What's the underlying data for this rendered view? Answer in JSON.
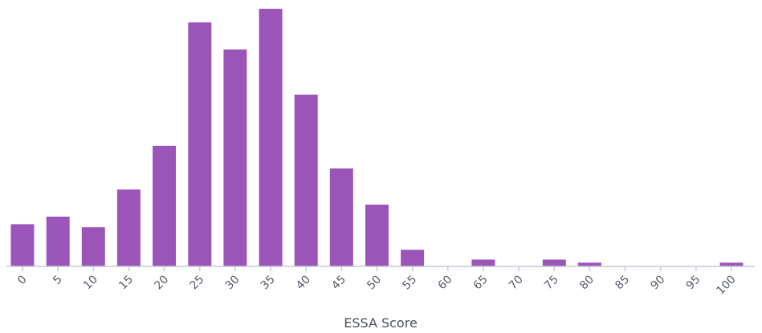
{
  "chart_data": {
    "type": "bar",
    "xlabel": "ESSA Score",
    "ylabel": "",
    "categories": [
      "0",
      "5",
      "10",
      "15",
      "20",
      "25",
      "30",
      "35",
      "40",
      "45",
      "50",
      "55",
      "60",
      "65",
      "70",
      "75",
      "80",
      "85",
      "90",
      "95",
      "100"
    ],
    "values": [
      28,
      33,
      26,
      51,
      80,
      162,
      144,
      171,
      114,
      65,
      41,
      11,
      0,
      4.5,
      0,
      4.5,
      2.5,
      0,
      0,
      0,
      2.5
    ],
    "ylim": [
      0,
      172
    ],
    "bar_color": "#9b55b9",
    "axis_color": "#c5cad6",
    "grid": false
  }
}
